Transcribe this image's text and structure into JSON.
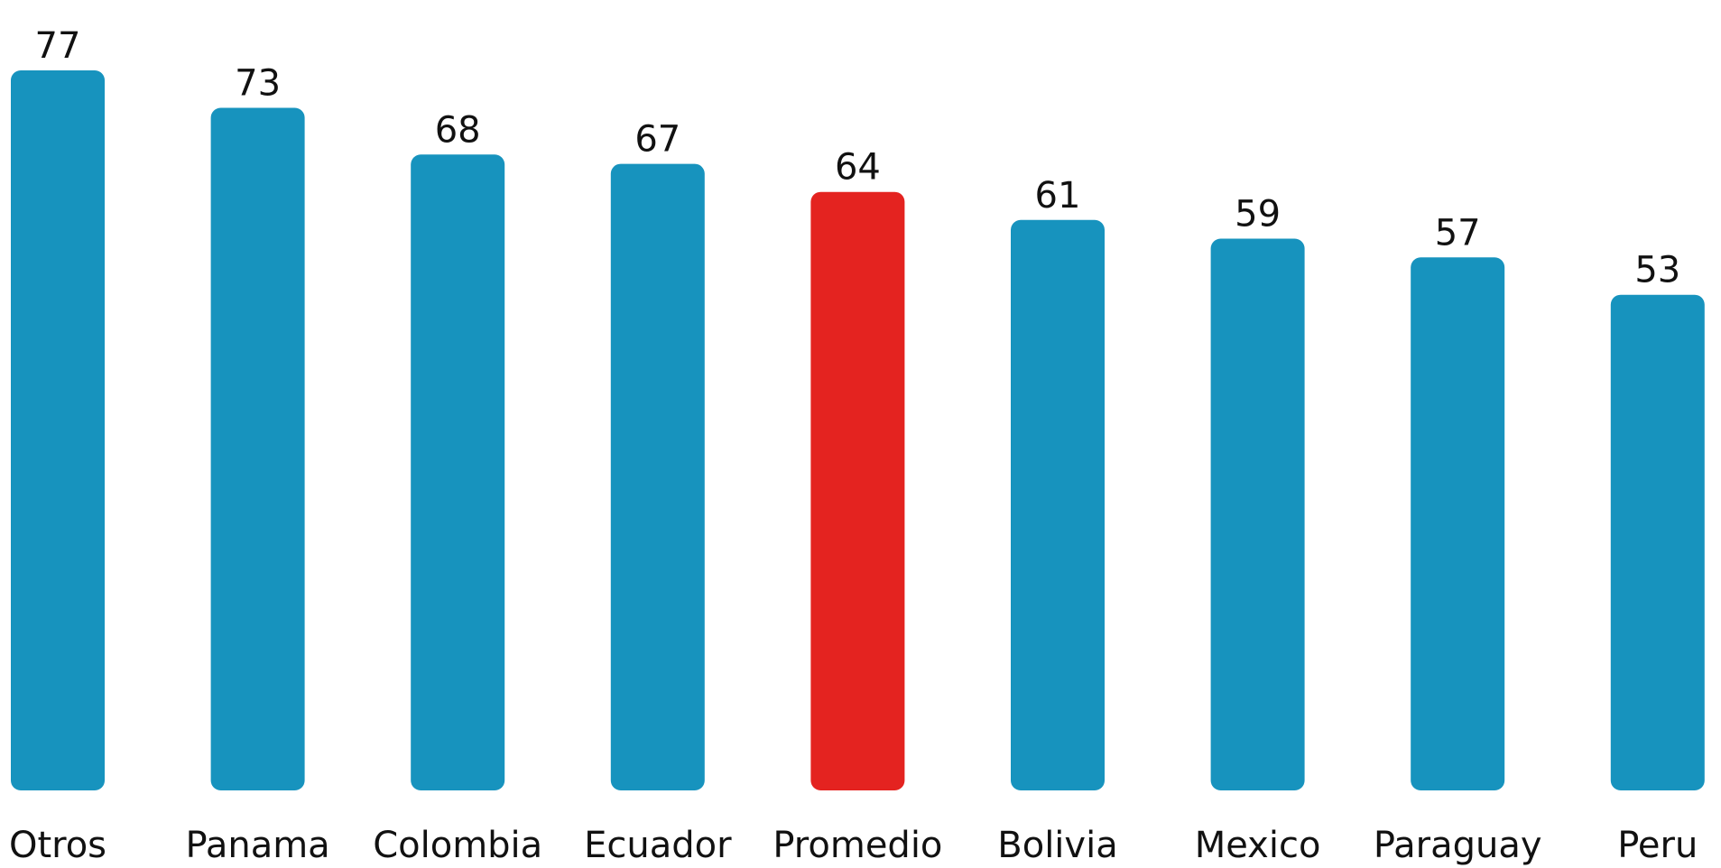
{
  "chart_data": {
    "type": "bar",
    "categories": [
      "Otros",
      "Panama",
      "Colombia",
      "Ecuador",
      "Promedio",
      "Bolivia",
      "Mexico",
      "Paraguay",
      "Peru"
    ],
    "values": [
      77,
      73,
      68,
      67,
      64,
      61,
      59,
      57,
      53
    ],
    "value_labels": [
      "77",
      "73",
      "68",
      "67",
      "64",
      "61",
      "59",
      "57",
      "53"
    ],
    "title": "",
    "xlabel": "",
    "ylabel": "",
    "ylim": [
      0,
      77
    ],
    "grid": false,
    "legend": "none",
    "colors": {
      "default": "#1793BE",
      "highlight": "#E42320",
      "text": "#111111"
    },
    "highlight_category": "Promedio"
  }
}
